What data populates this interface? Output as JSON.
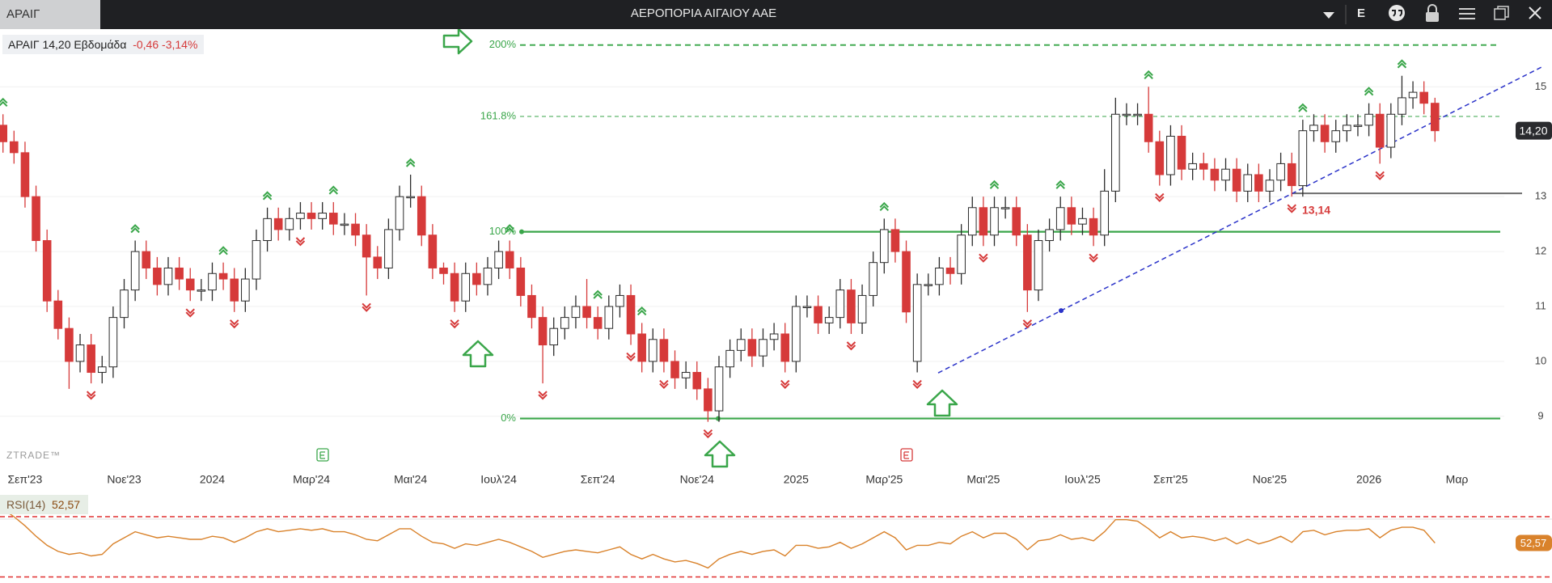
{
  "window": {
    "tab": "ΑΡΑΙΓ",
    "title": "ΑΕΡΟΠΟΡΙΑ ΑΙΓΑΙΟΥ ΑΑΕ",
    "e_button": "E"
  },
  "legend": {
    "symbol": "ΑΡΑΙΓ",
    "price": "14,20",
    "interval": "Εβδομάδα",
    "change": "-0,46",
    "change_pct": "-3,14%"
  },
  "watermark": "ZTRADE™",
  "chart_data": {
    "type": "candlestick",
    "categories": [
      null,
      null,
      "Σεπ'23",
      null,
      null,
      null,
      null,
      null,
      null,
      null,
      null,
      "Νοε'23",
      null,
      null,
      null,
      null,
      null,
      null,
      null,
      "2024",
      null,
      null,
      null,
      null,
      null,
      null,
      null,
      null,
      "Μαρ'24",
      null,
      null,
      null,
      null,
      null,
      null,
      null,
      null,
      "Μαι'24",
      null,
      null,
      null,
      null,
      null,
      null,
      null,
      "Ιουλ'24",
      null,
      null,
      null,
      null,
      null,
      null,
      null,
      null,
      "Σεπ'24",
      null,
      null,
      null,
      null,
      null,
      null,
      null,
      null,
      "Νοε'24",
      null,
      null,
      null,
      null,
      null,
      null,
      null,
      null,
      "2025",
      null,
      null,
      null,
      null,
      null,
      null,
      null,
      "Μαρ'25",
      null,
      null,
      null,
      null,
      null,
      null,
      null,
      null,
      "Μαι'25",
      null,
      null,
      null,
      null,
      null,
      null,
      null,
      null,
      "Ιουλ'25",
      null,
      null,
      null,
      null,
      null,
      null,
      null,
      "Σεπ'25",
      null,
      null,
      null,
      null,
      null,
      null,
      null,
      null,
      "Νοε'25",
      null,
      null,
      null,
      null,
      null,
      null,
      null,
      null,
      "2026",
      null,
      null,
      null,
      null,
      null,
      null,
      null,
      "Μαρ"
    ],
    "open": [
      14.3,
      14.0,
      13.8,
      13.0,
      12.2,
      11.1,
      10.6,
      10.0,
      10.3,
      9.8,
      9.9,
      10.8,
      11.3,
      12.0,
      11.7,
      11.4,
      11.7,
      11.5,
      11.3,
      11.3,
      11.6,
      11.5,
      11.1,
      11.5,
      12.2,
      12.6,
      12.4,
      12.6,
      12.7,
      12.6,
      12.7,
      12.5,
      12.5,
      12.3,
      11.9,
      11.7,
      12.4,
      13.0,
      13.0,
      12.3,
      11.7,
      11.6,
      11.1,
      11.6,
      11.4,
      11.7,
      12.0,
      11.7,
      11.2,
      10.8,
      10.3,
      10.6,
      10.8,
      11.0,
      10.8,
      10.6,
      11.0,
      11.2,
      10.5,
      10.0,
      10.4,
      10.0,
      9.7,
      9.8,
      9.5,
      9.1,
      9.9,
      10.2,
      10.4,
      10.1,
      10.4,
      10.5,
      10.0,
      11.0,
      11.0,
      10.7,
      10.8,
      11.3,
      10.7,
      11.2,
      11.8,
      12.4,
      12.0,
      10.0,
      11.4,
      11.4,
      11.7,
      11.6,
      12.3,
      12.8,
      12.3,
      12.8,
      12.8,
      12.3,
      11.3,
      12.2,
      12.4,
      12.8,
      12.5,
      12.6,
      12.3,
      13.1,
      14.5,
      14.5,
      14.5,
      14.0,
      13.4,
      14.1,
      13.5,
      13.6,
      13.5,
      13.3,
      13.5,
      13.1,
      13.4,
      13.1,
      13.3,
      13.6,
      13.2,
      14.2,
      14.3,
      14.0,
      14.2,
      14.3,
      14.3,
      14.5,
      13.9,
      14.5,
      14.8,
      14.9,
      14.7,
      null,
      null
    ],
    "high": [
      14.5,
      14.2,
      14.0,
      13.2,
      12.4,
      11.3,
      10.8,
      10.5,
      10.5,
      10.1,
      11.0,
      11.5,
      12.2,
      12.2,
      11.9,
      11.9,
      11.9,
      11.7,
      11.5,
      11.8,
      11.8,
      11.7,
      11.7,
      12.4,
      12.8,
      12.8,
      12.8,
      12.9,
      12.9,
      12.9,
      12.9,
      12.7,
      12.7,
      12.5,
      12.1,
      12.6,
      13.2,
      13.4,
      13.2,
      12.5,
      11.8,
      11.8,
      11.8,
      11.8,
      11.9,
      12.2,
      12.2,
      11.9,
      11.4,
      11.0,
      10.8,
      11.0,
      11.2,
      11.5,
      11.0,
      11.2,
      11.4,
      11.4,
      10.7,
      10.6,
      10.6,
      10.2,
      10.0,
      10.0,
      9.7,
      10.1,
      10.4,
      10.6,
      10.6,
      10.6,
      10.7,
      10.7,
      11.2,
      11.2,
      11.2,
      11.0,
      11.5,
      11.5,
      11.4,
      12.0,
      12.6,
      12.6,
      12.2,
      11.6,
      11.6,
      11.9,
      11.9,
      12.5,
      13.0,
      13.0,
      13.0,
      13.0,
      13.0,
      12.5,
      12.4,
      12.6,
      13.0,
      13.0,
      12.8,
      12.8,
      13.5,
      14.8,
      14.7,
      14.7,
      15.0,
      14.2,
      14.3,
      14.3,
      13.8,
      13.8,
      13.7,
      13.7,
      13.7,
      13.6,
      13.6,
      13.5,
      13.8,
      13.8,
      14.4,
      14.5,
      14.5,
      14.4,
      14.5,
      14.5,
      14.7,
      14.7,
      14.7,
      15.2,
      15.1,
      15.1,
      14.8,
      null,
      null
    ],
    "low": [
      13.8,
      13.6,
      12.8,
      12.0,
      10.9,
      10.4,
      9.5,
      9.8,
      9.6,
      9.6,
      9.7,
      10.6,
      11.1,
      11.5,
      11.2,
      11.2,
      11.3,
      11.1,
      11.1,
      11.1,
      11.3,
      10.9,
      10.9,
      11.3,
      12.0,
      12.2,
      12.2,
      12.4,
      12.4,
      12.4,
      12.3,
      12.3,
      12.1,
      11.2,
      11.5,
      11.5,
      12.2,
      12.8,
      12.1,
      11.5,
      11.4,
      10.9,
      10.9,
      11.2,
      11.2,
      11.5,
      11.5,
      11.0,
      10.6,
      9.6,
      10.1,
      10.4,
      10.6,
      10.6,
      10.4,
      10.4,
      10.8,
      10.3,
      9.8,
      9.8,
      9.8,
      9.5,
      9.5,
      9.3,
      8.9,
      8.9,
      9.7,
      10.0,
      9.9,
      9.9,
      10.2,
      9.8,
      9.8,
      10.8,
      10.5,
      10.5,
      10.6,
      10.5,
      10.5,
      11.0,
      11.6,
      11.8,
      10.7,
      9.8,
      11.2,
      11.2,
      11.4,
      11.4,
      12.1,
      12.1,
      12.1,
      12.6,
      12.1,
      10.9,
      11.1,
      12.0,
      12.2,
      12.3,
      12.3,
      12.1,
      12.1,
      12.9,
      14.3,
      14.3,
      13.8,
      13.2,
      13.2,
      13.3,
      13.3,
      13.3,
      13.1,
      13.1,
      12.9,
      12.9,
      12.9,
      12.9,
      13.1,
      13.0,
      13.0,
      14.0,
      13.8,
      13.8,
      14.0,
      14.1,
      14.1,
      13.6,
      13.7,
      14.3,
      14.6,
      14.5,
      14.0,
      null,
      null
    ],
    "close": [
      14.0,
      13.8,
      13.0,
      12.2,
      11.1,
      10.6,
      10.0,
      10.3,
      9.8,
      9.9,
      10.8,
      11.3,
      12.0,
      11.7,
      11.4,
      11.7,
      11.5,
      11.3,
      11.3,
      11.6,
      11.5,
      11.1,
      11.5,
      12.2,
      12.6,
      12.4,
      12.6,
      12.7,
      12.6,
      12.7,
      12.5,
      12.5,
      12.3,
      11.9,
      11.7,
      12.4,
      13.0,
      13.0,
      12.3,
      11.7,
      11.6,
      11.1,
      11.6,
      11.4,
      11.7,
      12.0,
      11.7,
      11.2,
      10.8,
      10.3,
      10.6,
      10.8,
      11.0,
      10.8,
      10.6,
      11.0,
      11.2,
      10.5,
      10.0,
      10.4,
      10.0,
      9.7,
      9.8,
      9.5,
      9.1,
      9.9,
      10.2,
      10.4,
      10.1,
      10.4,
      10.5,
      10.0,
      11.0,
      11.0,
      10.7,
      10.8,
      11.3,
      10.7,
      11.2,
      11.8,
      12.4,
      12.0,
      10.9,
      11.4,
      11.4,
      11.7,
      11.6,
      12.3,
      12.8,
      12.3,
      12.8,
      12.8,
      12.3,
      11.3,
      12.2,
      12.4,
      12.8,
      12.5,
      12.6,
      12.3,
      13.1,
      14.5,
      14.5,
      14.5,
      14.0,
      13.4,
      14.1,
      13.5,
      13.6,
      13.5,
      13.3,
      13.5,
      13.1,
      13.4,
      13.1,
      13.3,
      13.6,
      13.2,
      14.2,
      14.3,
      14.0,
      14.2,
      14.3,
      14.3,
      14.5,
      13.9,
      14.5,
      14.8,
      14.9,
      14.7,
      14.2,
      null,
      null
    ],
    "up_color": "#ffffff",
    "down_color": "#d63a3a",
    "last_price_label": "14,20",
    "ylim": [
      8.1,
      16.05
    ],
    "yticks": [
      9,
      10,
      11,
      12,
      13,
      15
    ],
    "grid": true,
    "fibonacci": [
      {
        "value": 15.76,
        "label": "200%",
        "style": "dashed"
      },
      {
        "value": 14.46,
        "label": "161.8%",
        "style": "dotted"
      },
      {
        "value": 12.36,
        "label": "100%",
        "style": "solid"
      },
      {
        "value": 8.96,
        "label": "0%",
        "style": "solid"
      }
    ],
    "fib_color": "#3aa64a",
    "support_line": 13.06,
    "low_label": "13,14",
    "trendline": [
      9.79,
      15.38
    ],
    "trend_color": "#2b33c9",
    "rsi": {
      "name": "RSI(14)",
      "color": "#d9822b",
      "value_label": "52,57",
      "levels": [
        70,
        30
      ],
      "ylim": [
        26,
        84.5
      ],
      "values": [
        75,
        70,
        64,
        57,
        51,
        47,
        45,
        46,
        44,
        45,
        52,
        56,
        60,
        58,
        56,
        57,
        56,
        55,
        55,
        57,
        56,
        53,
        56,
        60,
        62,
        60,
        61,
        62,
        61,
        62,
        60,
        60,
        58,
        55,
        54,
        58,
        62,
        62,
        57,
        53,
        52,
        49,
        52,
        51,
        53,
        55,
        53,
        50,
        47,
        43,
        45,
        47,
        48,
        47,
        46,
        48,
        50,
        45,
        42,
        45,
        42,
        40,
        41,
        39,
        36,
        42,
        45,
        47,
        45,
        47,
        48,
        44,
        51,
        51,
        49,
        50,
        53,
        49,
        52,
        56,
        60,
        56,
        48,
        51,
        51,
        53,
        52,
        57,
        60,
        56,
        59,
        59,
        55,
        48,
        54,
        55,
        58,
        55,
        56,
        54,
        60,
        68,
        68,
        67,
        62,
        56,
        60,
        56,
        57,
        56,
        54,
        56,
        52,
        55,
        52,
        54,
        57,
        53,
        60,
        61,
        58,
        60,
        61,
        61,
        62,
        56,
        61,
        63,
        63,
        61,
        52.57,
        null,
        null
      ]
    }
  }
}
